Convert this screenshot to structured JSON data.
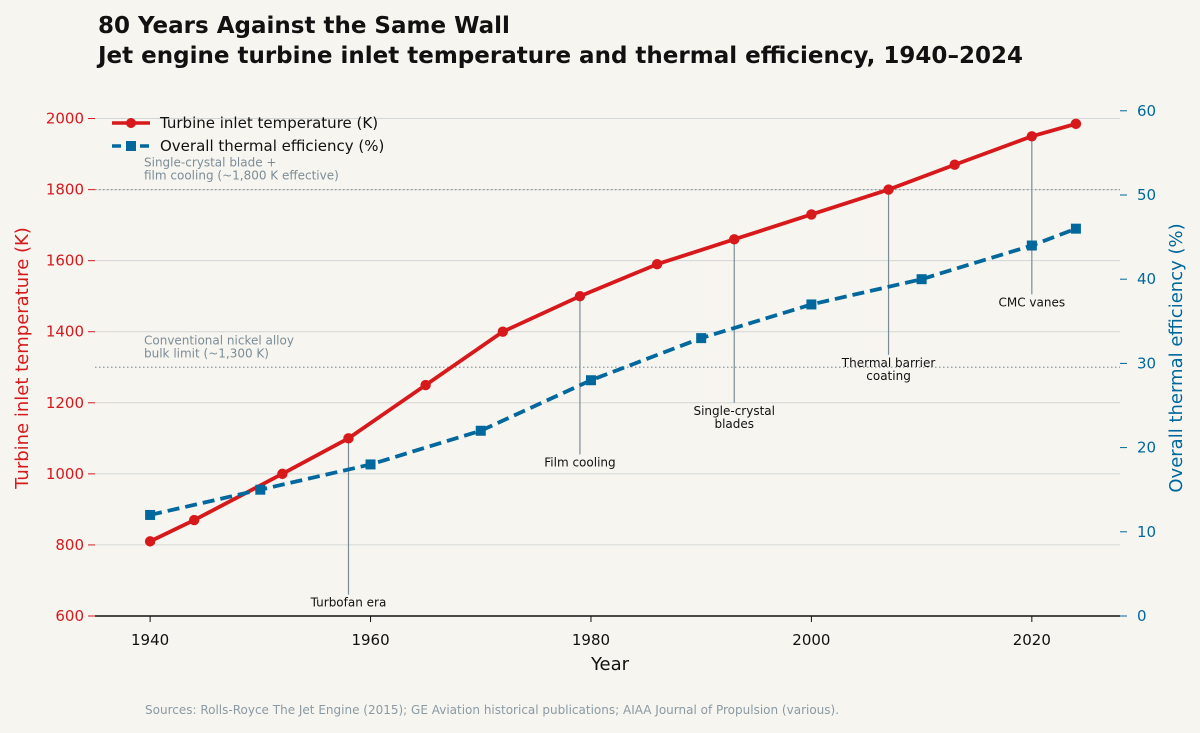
{
  "chart_data": {
    "type": "line",
    "title": "80 Years Against the Same Wall",
    "subtitle": "Jet engine turbine inlet temperature and thermal efficiency, 1940–2024",
    "xlabel": "Year",
    "ylabel_left": "Turbine inlet temperature (K)",
    "ylabel_right": "Overall thermal efficiency (%)",
    "xlim": [
      1935,
      2028
    ],
    "ylim_left": [
      600,
      2100
    ],
    "ylim_right": [
      0,
      63.3
    ],
    "x_ticks": [
      1940,
      1960,
      1980,
      2000,
      2020
    ],
    "y_ticks_left": [
      600,
      800,
      1000,
      1200,
      1400,
      1600,
      1800,
      2000
    ],
    "y_ticks_right": [
      0,
      10,
      20,
      30,
      40,
      50,
      60
    ],
    "grid": "horizontal",
    "legend_position": "top-left",
    "colors": {
      "temperature": "#d7191c",
      "efficiency": "#00689d",
      "reference": "#8a9aa4",
      "annotation": "#7c8d97"
    },
    "series": [
      {
        "name": "Turbine inlet temperature (K)",
        "axis": "left",
        "style": "solid-circle",
        "x": [
          1940,
          1944,
          1952,
          1958,
          1965,
          1972,
          1979,
          1986,
          1993,
          2000,
          2007,
          2013,
          2020,
          2024
        ],
        "values": [
          810,
          870,
          1000,
          1100,
          1250,
          1400,
          1500,
          1590,
          1660,
          1730,
          1800,
          1870,
          1950,
          1985
        ]
      },
      {
        "name": "Overall thermal efficiency (%)",
        "axis": "right",
        "style": "dashed-square",
        "x": [
          1940,
          1950,
          1960,
          1970,
          1980,
          1990,
          2000,
          2010,
          2020,
          2024
        ],
        "values": [
          12,
          15,
          18,
          22,
          28,
          33,
          37,
          40,
          44,
          46
        ]
      }
    ],
    "reference_lines": [
      {
        "axis": "left",
        "value": 1800,
        "label_lines": [
          "Single-crystal blade +",
          "film cooling (~1,800 K effective)"
        ]
      },
      {
        "axis": "left",
        "value": 1300,
        "label_lines": [
          "Conventional nickel alloy",
          "bulk limit (~1,300 K)"
        ]
      }
    ],
    "annotations": [
      {
        "x": 1958,
        "from": 1100,
        "to": 660,
        "label_lines": [
          "Turbofan era"
        ]
      },
      {
        "x": 1979,
        "from": 1500,
        "to": 1055,
        "label_lines": [
          "Film cooling"
        ]
      },
      {
        "x": 1993,
        "from": 1660,
        "to": 1200,
        "label_lines": [
          "Single-crystal",
          "blades"
        ]
      },
      {
        "x": 2007,
        "from": 1800,
        "to": 1335,
        "label_lines": [
          "Thermal barrier",
          "coating"
        ]
      },
      {
        "x": 2020,
        "from": 1950,
        "to": 1505,
        "label_lines": [
          "CMC vanes"
        ]
      }
    ],
    "source": "Sources: Rolls-Royce The Jet Engine (2015); GE Aviation historical publications; AIAA Journal of Propulsion (various)."
  }
}
